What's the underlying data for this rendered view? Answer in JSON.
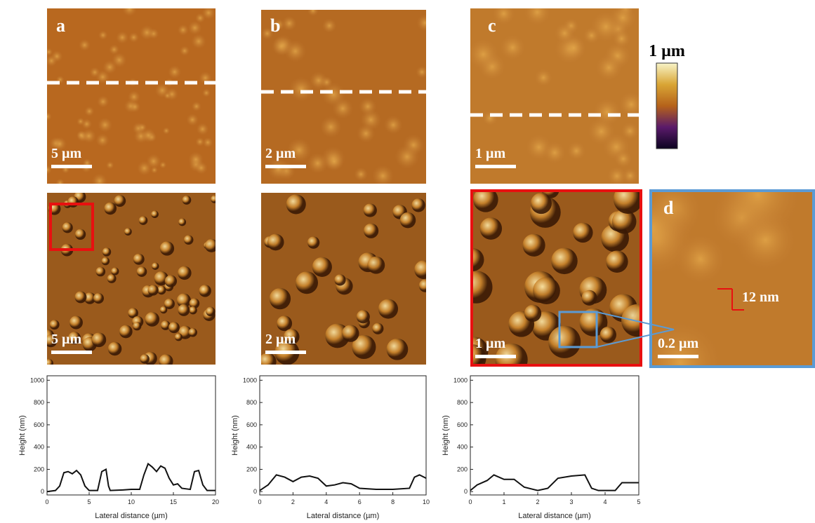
{
  "chart_data": [
    {
      "type": "line",
      "xlabel": "Lateral distance (µm)",
      "ylabel": "Height (nm)",
      "xlim": [
        0,
        20
      ],
      "ylim": [
        -30,
        1040
      ],
      "xticks": [
        0,
        5,
        10,
        15,
        20
      ],
      "yticks": [
        0,
        200,
        400,
        600,
        800,
        1000
      ],
      "x": [
        0,
        1,
        1.5,
        2,
        2.5,
        3,
        3.5,
        4,
        4.5,
        5,
        6,
        6.5,
        7,
        7.3,
        7.5,
        9,
        10,
        11,
        11.5,
        12,
        12.5,
        13,
        13.5,
        14,
        14.5,
        15,
        15.5,
        16,
        17,
        17.5,
        18,
        18.5,
        19,
        20
      ],
      "series": [
        {
          "color": "#111111",
          "values": [
            0,
            10,
            50,
            170,
            180,
            160,
            190,
            150,
            50,
            10,
            10,
            180,
            200,
            50,
            10,
            15,
            20,
            20,
            150,
            250,
            220,
            180,
            230,
            210,
            120,
            60,
            70,
            30,
            20,
            180,
            190,
            60,
            10,
            10
          ]
        }
      ]
    },
    {
      "type": "line",
      "xlabel": "Lateral distance (µm)",
      "ylabel": "Height (nm)",
      "xlim": [
        0,
        10
      ],
      "ylim": [
        -30,
        1040
      ],
      "xticks": [
        0,
        2,
        4,
        6,
        8,
        10
      ],
      "yticks": [
        0,
        200,
        400,
        600,
        800,
        1000
      ],
      "x": [
        0,
        0.5,
        1,
        1.5,
        2,
        2.5,
        3,
        3.5,
        4,
        4.5,
        5,
        5.5,
        6,
        7,
        8,
        9,
        9.3,
        9.6,
        10
      ],
      "series": [
        {
          "color": "#111111",
          "values": [
            10,
            60,
            150,
            130,
            90,
            130,
            140,
            120,
            50,
            60,
            80,
            70,
            30,
            20,
            20,
            30,
            130,
            150,
            120
          ]
        }
      ]
    },
    {
      "type": "line",
      "xlabel": "Lateral distance (µm)",
      "ylabel": "Height (nm)",
      "xlim": [
        0,
        5
      ],
      "ylim": [
        -30,
        1040
      ],
      "xticks": [
        0,
        1,
        2,
        3,
        4,
        5
      ],
      "yticks": [
        0,
        200,
        400,
        600,
        800,
        1000
      ],
      "x": [
        0,
        0.2,
        0.5,
        0.7,
        1,
        1.3,
        1.6,
        2,
        2.3,
        2.6,
        3,
        3.4,
        3.6,
        3.8,
        4.3,
        4.5,
        5
      ],
      "series": [
        {
          "color": "#111111",
          "values": [
            10,
            60,
            100,
            150,
            110,
            110,
            40,
            10,
            30,
            120,
            140,
            150,
            30,
            10,
            10,
            80,
            80
          ]
        }
      ]
    }
  ],
  "panels": {
    "labels": [
      "a",
      "b",
      "c",
      "d"
    ],
    "scale_bars": [
      "5 µm",
      "2 µm",
      "1 µm",
      "5 µm",
      "2 µm",
      "1 µm",
      "0.2 µm"
    ],
    "colorbar_label": "1 µm",
    "annotation": "12 nm"
  }
}
